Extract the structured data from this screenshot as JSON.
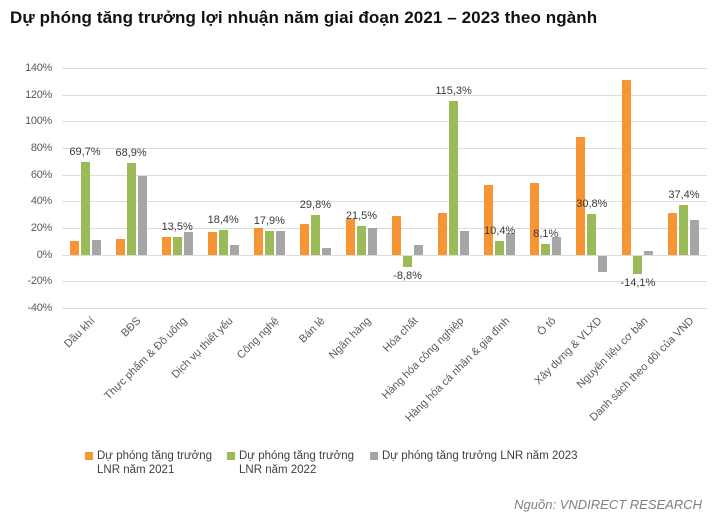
{
  "title": "Dự phóng tăng trưởng lợi nhuận năm giai đoạn 2021 – 2023 theo ngành",
  "source": "Nguồn: VNDIRECT RESEARCH",
  "colors": {
    "series_2021": "#F79433",
    "series_2022": "#9BBB59",
    "series_2023": "#A6A6A6",
    "gridline": "#DCDCDC",
    "axis_text": "#595959",
    "title_text": "#111111",
    "source_text": "#808080"
  },
  "legend": {
    "items": [
      {
        "label": "Dự phóng tăng trưởng LNR năm 2021",
        "color": "#F79433"
      },
      {
        "label": "Dự phóng tăng trưởng LNR năm 2022",
        "color": "#9BBB59"
      },
      {
        "label": "Dự phóng tăng trưởng LNR năm 2023",
        "color": "#A6A6A6"
      }
    ]
  },
  "chart_data": {
    "type": "bar",
    "title": "Dự phóng tăng trưởng lợi nhuận năm giai đoạn 2021 – 2023 theo ngành",
    "categories": [
      "Dầu khí",
      "BĐS",
      "Thực phẩm & Đồ uống",
      "Dịch vụ thiết yếu",
      "Công nghệ",
      "Bán lẻ",
      "Ngân hàng",
      "Hóa chất",
      "Hàng hóa công nghiệp",
      "Hàng hóa cá nhân & gia đình",
      "Ô tô",
      "Xây dựng & VLXD",
      "Nguyên liệu cơ bản",
      "Danh sách theo dõi của VND"
    ],
    "series": [
      {
        "name": "Dự phóng tăng trưởng LNR năm 2021",
        "color": "#F79433",
        "values": [
          10,
          12,
          13,
          17,
          20,
          23,
          27,
          29,
          31,
          52,
          54,
          88,
          131,
          31
        ]
      },
      {
        "name": "Dự phóng tăng trưởng LNR năm 2022",
        "color": "#9BBB59",
        "values": [
          69.7,
          68.9,
          13.5,
          18.4,
          17.9,
          29.8,
          21.5,
          -8.8,
          115.3,
          10.4,
          8.1,
          30.8,
          -14.1,
          37.4
        ]
      },
      {
        "name": "Dự phóng tăng trưởng LNR năm 2023",
        "color": "#A6A6A6",
        "values": [
          11,
          59,
          17,
          7,
          18,
          5,
          20,
          7,
          18,
          16,
          13,
          -12,
          3,
          26
        ]
      }
    ],
    "data_labels": [
      "69,7%",
      "68,9%",
      "13,5%",
      "18,4%",
      "17,9%",
      "29,8%",
      "21,5%",
      "-8,8%",
      "115,3%",
      "10,4%",
      "8,1%",
      "30,8%",
      "-14,1%",
      "37,4%"
    ],
    "data_labels_series": "Dự phóng tăng trưởng LNR năm 2022",
    "y_tick_values": [
      140,
      120,
      100,
      80,
      60,
      40,
      20,
      0,
      -20,
      -40
    ],
    "y_tick_labels": [
      "140%",
      "120%",
      "100%",
      "80%",
      "60%",
      "40%",
      "20%",
      "0%",
      "-20%",
      "-40%"
    ],
    "ylim": [
      -40,
      140
    ],
    "xlabel": "",
    "ylabel": "",
    "grid": true,
    "legend_position": "bottom"
  }
}
